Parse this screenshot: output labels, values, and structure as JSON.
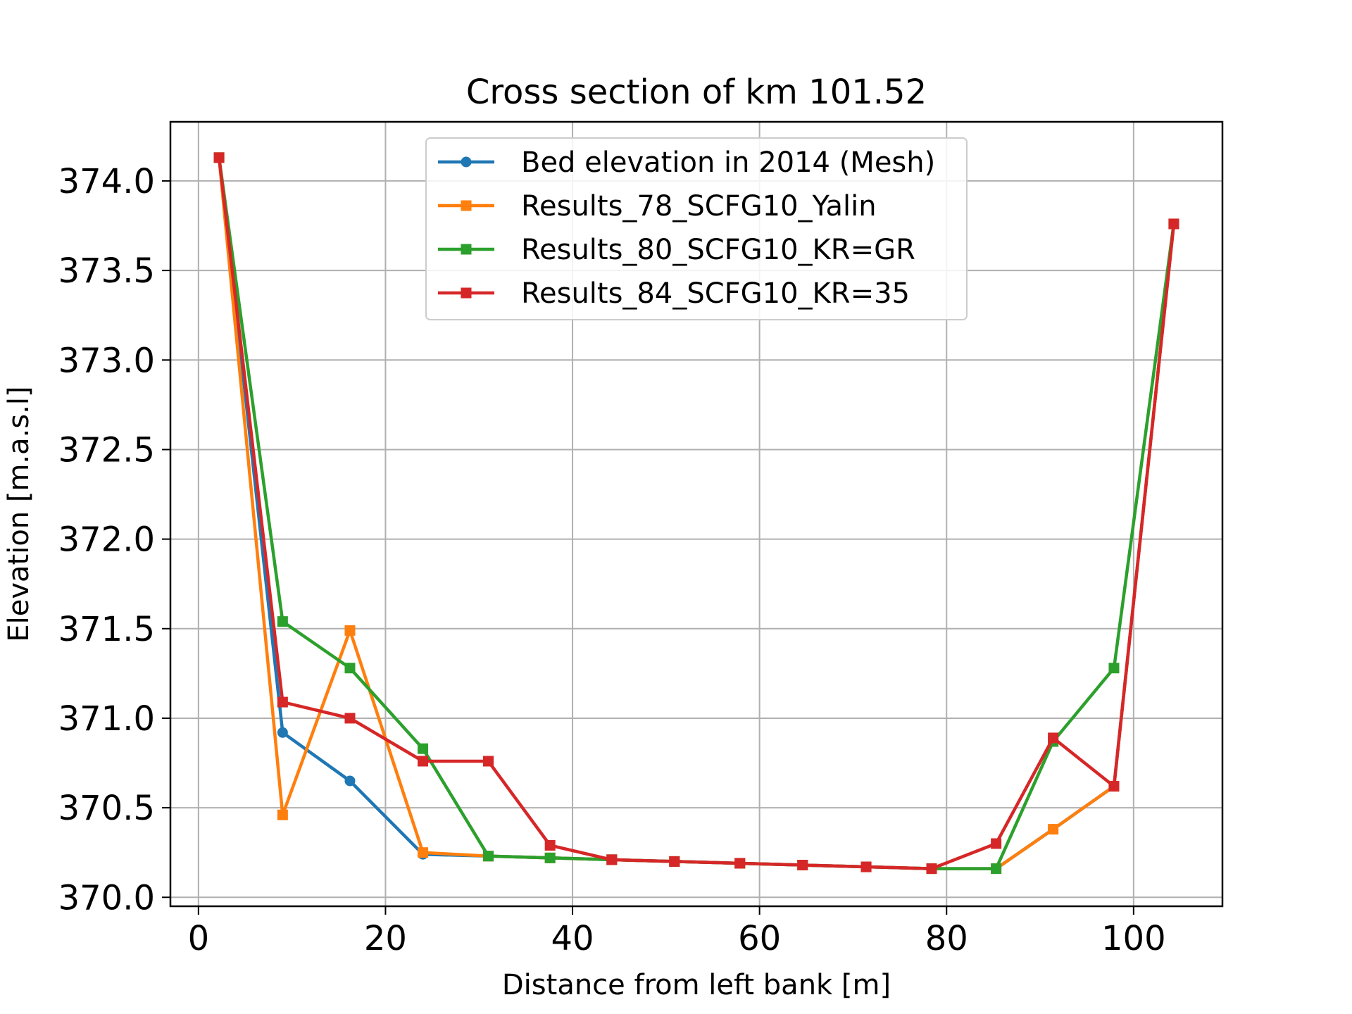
{
  "chart_data": {
    "type": "line",
    "title": "Cross section of km 101.52",
    "xlabel": "Distance from left bank [m]",
    "ylabel": "Elevation [m.a.s.l]",
    "xlim": [
      -3.0,
      109.5
    ],
    "ylim": [
      369.95,
      374.33
    ],
    "xticks": [
      0,
      20,
      40,
      60,
      80,
      100
    ],
    "xtick_labels": [
      "0",
      "20",
      "40",
      "60",
      "80",
      "100"
    ],
    "yticks": [
      370.0,
      370.5,
      371.0,
      371.5,
      372.0,
      372.5,
      373.0,
      373.5,
      374.0
    ],
    "ytick_labels": [
      "370.0",
      "370.5",
      "371.0",
      "371.5",
      "372.0",
      "372.5",
      "373.0",
      "373.5",
      "374.0"
    ],
    "grid": true,
    "legend_position": "upper-center",
    "series": [
      {
        "name": "Bed elevation in 2014 (Mesh)",
        "color": "#1f77b4",
        "marker": "circle",
        "x": [
          2.2,
          9.0,
          16.2,
          24.0,
          31.0,
          37.6,
          44.2,
          50.9,
          57.9,
          64.6,
          71.4,
          78.4,
          85.3,
          91.4,
          97.9,
          104.3
        ],
        "y": [
          374.13,
          370.92,
          370.65,
          370.24,
          370.23,
          370.22,
          370.21,
          370.2,
          370.19,
          370.18,
          370.17,
          370.16,
          370.16,
          370.38,
          370.62,
          373.76
        ]
      },
      {
        "name": "Results_78_SCFG10_Yalin",
        "color": "#ff7f0e",
        "marker": "square",
        "x": [
          2.2,
          9.0,
          16.2,
          24.0,
          31.0,
          37.6,
          44.2,
          50.9,
          57.9,
          64.6,
          71.4,
          78.4,
          85.3,
          91.4,
          97.9,
          104.3
        ],
        "y": [
          374.13,
          370.46,
          371.49,
          370.25,
          370.23,
          370.22,
          370.21,
          370.2,
          370.19,
          370.18,
          370.17,
          370.16,
          370.16,
          370.38,
          370.62,
          373.76
        ]
      },
      {
        "name": "Results_80_SCFG10_KR=GR",
        "color": "#2ca02c",
        "marker": "square",
        "x": [
          2.2,
          9.0,
          16.2,
          24.0,
          31.0,
          37.6,
          44.2,
          50.9,
          57.9,
          64.6,
          71.4,
          78.4,
          85.3,
          91.4,
          97.9,
          104.3
        ],
        "y": [
          374.13,
          371.54,
          371.28,
          370.83,
          370.23,
          370.22,
          370.21,
          370.2,
          370.19,
          370.18,
          370.17,
          370.16,
          370.16,
          370.87,
          371.28,
          373.76
        ]
      },
      {
        "name": "Results_84_SCFG10_KR=35",
        "color": "#d62728",
        "marker": "square",
        "x": [
          2.2,
          9.0,
          16.2,
          24.0,
          31.0,
          37.6,
          44.2,
          50.9,
          57.9,
          64.6,
          71.4,
          78.4,
          85.3,
          91.4,
          97.9,
          104.3
        ],
        "y": [
          374.13,
          371.09,
          371.0,
          370.76,
          370.76,
          370.29,
          370.21,
          370.2,
          370.19,
          370.18,
          370.17,
          370.16,
          370.3,
          370.89,
          370.62,
          373.76
        ]
      }
    ]
  }
}
